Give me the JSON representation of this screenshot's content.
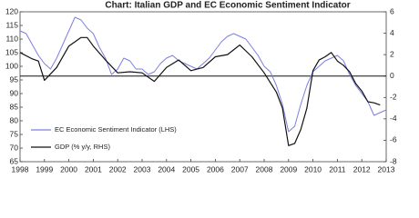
{
  "chart_data": {
    "type": "line",
    "title": "Chart: Italian GDP and EC Economic Sentiment Indicator",
    "xlim": [
      1998,
      2013
    ],
    "xticks": [
      1998,
      1999,
      2000,
      2001,
      2002,
      2003,
      2004,
      2005,
      2006,
      2007,
      2008,
      2009,
      2010,
      2011,
      2012,
      2013
    ],
    "ylim": [
      65,
      120
    ],
    "yticks": [
      65,
      70,
      75,
      80,
      85,
      90,
      95,
      100,
      105,
      110,
      115,
      120
    ],
    "y2lim": [
      -8,
      6
    ],
    "y2ticks": [
      -8,
      -6,
      -4,
      -2,
      0,
      2,
      4,
      6
    ],
    "reference_line": {
      "axis": "y2",
      "value": 0
    },
    "legend": "lower-left",
    "series": [
      {
        "name": "EC Economic Sentiment Indicator (LHS)",
        "color": "#7b7fe0",
        "axis": "y",
        "x": [
          1998,
          1998.25,
          1998.5,
          1998.75,
          1999,
          1999.25,
          1999.5,
          1999.75,
          2000,
          2000.25,
          2000.5,
          2000.75,
          2001,
          2001.25,
          2001.5,
          2001.75,
          2002,
          2002.25,
          2002.5,
          2002.75,
          2003,
          2003.25,
          2003.5,
          2003.75,
          2004,
          2004.25,
          2004.5,
          2004.75,
          2005,
          2005.25,
          2005.5,
          2005.75,
          2006,
          2006.25,
          2006.5,
          2006.75,
          2007,
          2007.25,
          2007.5,
          2007.75,
          2008,
          2008.25,
          2008.5,
          2008.75,
          2009,
          2009.25,
          2009.5,
          2009.75,
          2010,
          2010.25,
          2010.5,
          2010.75,
          2011,
          2011.25,
          2011.5,
          2011.75,
          2012,
          2012.25,
          2012.5,
          2012.75,
          2013
        ],
        "values": [
          113,
          112,
          108,
          104,
          101,
          99,
          103,
          108,
          113,
          118,
          117,
          114,
          112,
          107,
          103,
          97,
          99,
          103,
          102,
          99,
          99,
          97,
          98,
          101,
          103,
          104,
          102,
          101,
          100,
          99,
          101,
          103,
          106,
          109,
          111,
          112,
          111,
          110,
          107,
          104,
          100,
          98,
          93,
          86,
          76,
          78,
          86,
          93,
          98,
          100,
          102,
          103,
          104,
          102,
          97,
          93,
          90,
          87,
          82,
          83,
          84
        ]
      },
      {
        "name": "GDP (% y/y, RHS)",
        "color": "#111111",
        "axis": "y2",
        "x": [
          1998,
          1998.5,
          1998.75,
          1999,
          1999.5,
          2000,
          2000.5,
          2000.75,
          2001,
          2001.5,
          2002,
          2002.5,
          2003,
          2003.5,
          2004,
          2004.5,
          2005,
          2005.5,
          2006,
          2006.5,
          2007,
          2007.5,
          2008,
          2008.5,
          2008.75,
          2009,
          2009.25,
          2009.5,
          2009.75,
          2010,
          2010.25,
          2010.5,
          2010.75,
          2011,
          2011.25,
          2011.5,
          2011.75,
          2012,
          2012.25,
          2012.5,
          2012.75
        ],
        "values": [
          2.2,
          1.6,
          1.4,
          -0.4,
          0.8,
          2.8,
          3.6,
          3.6,
          2.8,
          1.5,
          0.3,
          0.4,
          0.3,
          -0.5,
          0.8,
          1.5,
          0.5,
          0.8,
          1.8,
          2.0,
          2.9,
          1.8,
          0.3,
          -1.5,
          -3,
          -6.5,
          -6.3,
          -5,
          -3,
          0.5,
          1.5,
          1.8,
          2.2,
          1.4,
          1.0,
          0.4,
          -0.7,
          -1.4,
          -2.4,
          -2.5,
          -2.7
        ]
      }
    ]
  }
}
